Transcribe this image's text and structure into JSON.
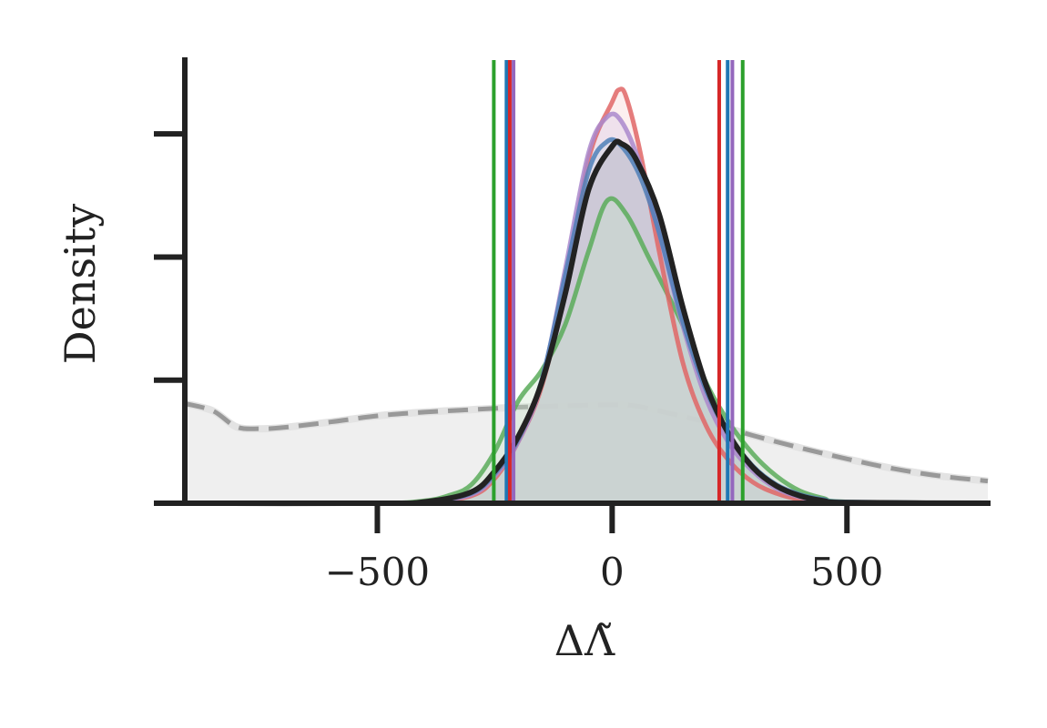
{
  "chart_data": {
    "type": "area",
    "xlabel": "ΔΛ̃",
    "ylabel": "Density",
    "xlim": [
      -910,
      800
    ],
    "ylim": [
      0,
      0.0036
    ],
    "x_ticks": [
      -500,
      0,
      500
    ],
    "x_tick_labels": [
      "−500",
      "0",
      "500"
    ],
    "y_ticks": [
      0.001,
      0.002,
      0.003
    ],
    "grid": false,
    "legend": "none",
    "prior": {
      "style": "dashed",
      "color": "#999999",
      "fill": "#efefef",
      "x": [
        -910,
        -850,
        -800,
        -750,
        -700,
        -600,
        -500,
        -400,
        -300,
        -200,
        -100,
        0,
        50,
        100,
        200,
        300,
        400,
        500,
        600,
        700,
        800
      ],
      "y": [
        0.00081,
        0.00075,
        0.00062,
        0.000605,
        0.000615,
        0.00066,
        0.00071,
        0.00074,
        0.00076,
        0.00078,
        0.00079,
        0.0008,
        0.00079,
        0.00075,
        0.00066,
        0.00055,
        0.00045,
        0.00036,
        0.00028,
        0.00022,
        0.00018
      ]
    },
    "series": [
      {
        "color": "#222222",
        "fill": "#aeafb1",
        "x": [
          -910,
          -500,
          -400,
          -300,
          -250,
          -200,
          -150,
          -100,
          -50,
          0,
          20,
          50,
          100,
          150,
          200,
          250,
          300,
          350,
          400,
          450,
          500,
          800
        ],
        "y": [
          0,
          0,
          1e-05,
          9e-05,
          0.00026,
          0.00054,
          0.00098,
          0.0017,
          0.00255,
          0.0029,
          0.00292,
          0.0028,
          0.00235,
          0.0016,
          0.00096,
          0.00055,
          0.00029,
          0.00014,
          6e-05,
          2e-05,
          5e-06,
          0
        ]
      },
      {
        "color": "#e06666",
        "fill": "#f6d0d0",
        "x": [
          -910,
          -500,
          -400,
          -300,
          -250,
          -200,
          -150,
          -100,
          -50,
          0,
          15,
          30,
          60,
          100,
          150,
          200,
          250,
          300,
          350,
          400,
          450,
          500,
          800
        ],
        "y": [
          0,
          0,
          1e-05,
          6e-05,
          0.0002,
          0.0005,
          0.00095,
          0.00175,
          0.0028,
          0.00326,
          0.00336,
          0.0033,
          0.00285,
          0.00205,
          0.00115,
          0.00063,
          0.00034,
          0.00017,
          8e-05,
          3e-05,
          1e-05,
          0,
          0
        ]
      },
      {
        "color": "#aa88cc",
        "fill": "#d8c8e8",
        "x": [
          -910,
          -500,
          -400,
          -300,
          -250,
          -200,
          -150,
          -100,
          -50,
          -10,
          20,
          60,
          100,
          150,
          200,
          250,
          300,
          350,
          400,
          450,
          500,
          800
        ],
        "y": [
          0,
          0,
          1e-05,
          7e-05,
          0.00022,
          0.0005,
          0.00098,
          0.0019,
          0.00285,
          0.00314,
          0.0031,
          0.00275,
          0.0022,
          0.00145,
          0.00085,
          0.00048,
          0.00026,
          0.00012,
          5e-05,
          2e-05,
          5e-06,
          0
        ]
      },
      {
        "color": "#4f80b8",
        "fill": "#c5d4e6",
        "x": [
          -910,
          -500,
          -400,
          -300,
          -250,
          -200,
          -150,
          -100,
          -50,
          -10,
          20,
          60,
          100,
          150,
          200,
          250,
          300,
          350,
          400,
          450,
          500,
          800
        ],
        "y": [
          0,
          0,
          1e-05,
          8e-05,
          0.00024,
          0.00052,
          0.001,
          0.00185,
          0.0027,
          0.00294,
          0.0029,
          0.00265,
          0.0022,
          0.00148,
          0.00092,
          0.00055,
          0.0003,
          0.00015,
          7e-05,
          3e-05,
          1e-05,
          0
        ]
      },
      {
        "color": "#5aab5a",
        "fill": "#c8e4c8",
        "x": [
          -910,
          -500,
          -400,
          -350,
          -300,
          -250,
          -200,
          -150,
          -100,
          -50,
          -10,
          30,
          80,
          150,
          200,
          250,
          300,
          350,
          400,
          450,
          500,
          800
        ],
        "y": [
          0,
          0,
          2e-05,
          6e-05,
          0.00015,
          0.00042,
          0.00083,
          0.00108,
          0.00145,
          0.00205,
          0.00246,
          0.00235,
          0.00198,
          0.00145,
          0.00098,
          0.00065,
          0.0004,
          0.00022,
          0.0001,
          4e-05,
          1e-05,
          0
        ]
      }
    ],
    "vertical_lines": [
      {
        "x": -252,
        "color": "#2ca02c"
      },
      {
        "x": -225,
        "color": "#1f77b4"
      },
      {
        "x": -218,
        "color": "#d62728"
      },
      {
        "x": -210,
        "color": "#9467bd"
      },
      {
        "x": 228,
        "color": "#d62728"
      },
      {
        "x": 246,
        "color": "#1f77b4"
      },
      {
        "x": 256,
        "color": "#9467bd"
      },
      {
        "x": 278,
        "color": "#2ca02c"
      }
    ]
  }
}
